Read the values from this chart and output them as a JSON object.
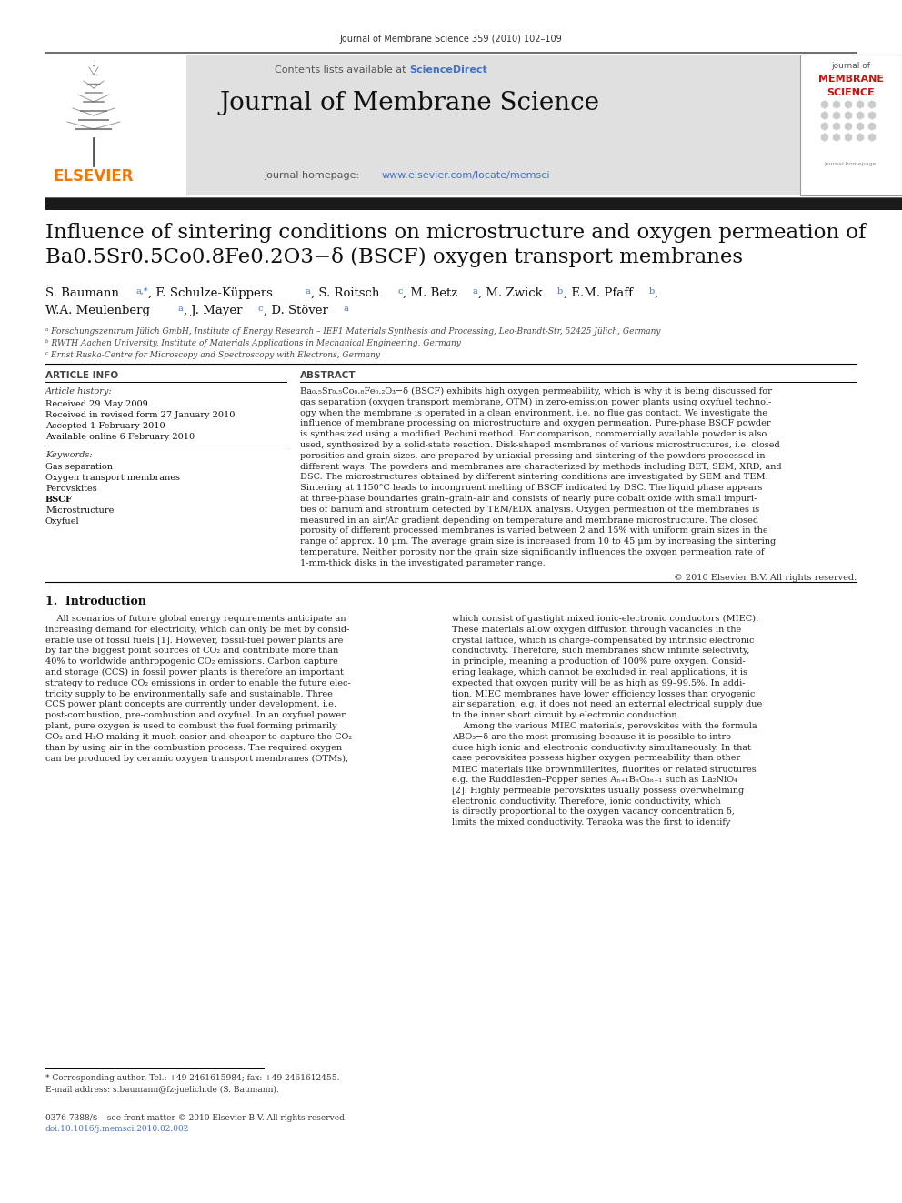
{
  "page_width": 9.92,
  "page_height": 13.23,
  "bg_color": "#ffffff",
  "top_journal_ref": "Journal of Membrane Science 359 (2010) 102–109",
  "header_bg": "#e0e0e0",
  "sciencedirect_color": "#4472c4",
  "journal_title": "Journal of Membrane Science",
  "homepage_url": "www.elsevier.com/locate/memsci",
  "homepage_url_color": "#4472c4",
  "dark_bar_color": "#1a1a1a",
  "elsevier_color": "#f07800",
  "article_title_line1": "Influence of sintering conditions on microstructure and oxygen permeation of",
  "article_title_line2": "Ba0.5Sr0.5Co0.8Fe0.2O3−δ (BSCF) oxygen transport membranes",
  "affil_a": "ᵃ Forschungszentrum Jülich GmbH, Institute of Energy Research – IEF1 Materials Synthesis and Processing, Leo-Brandt-Str, 52425 Jülich, Germany",
  "affil_b": "ᵇ RWTH Aachen University, Institute of Materials Applications in Mechanical Engineering, Germany",
  "affil_c": "ᶜ Ernst Ruska-Centre for Microscopy and Spectroscopy with Electrons, Germany",
  "copyright": "© 2010 Elsevier B.V. All rights reserved.",
  "footnote_star": "* Corresponding author. Tel.: +49 2461615984; fax: +49 2461612455.",
  "footnote_email": "E-mail address: s.baumann@fz-juelich.de (S. Baumann).",
  "footnote_issn": "0376-7388/$ – see front matter © 2010 Elsevier B.V. All rights reserved.",
  "footnote_doi": "doi:10.1016/j.memsci.2010.02.002"
}
